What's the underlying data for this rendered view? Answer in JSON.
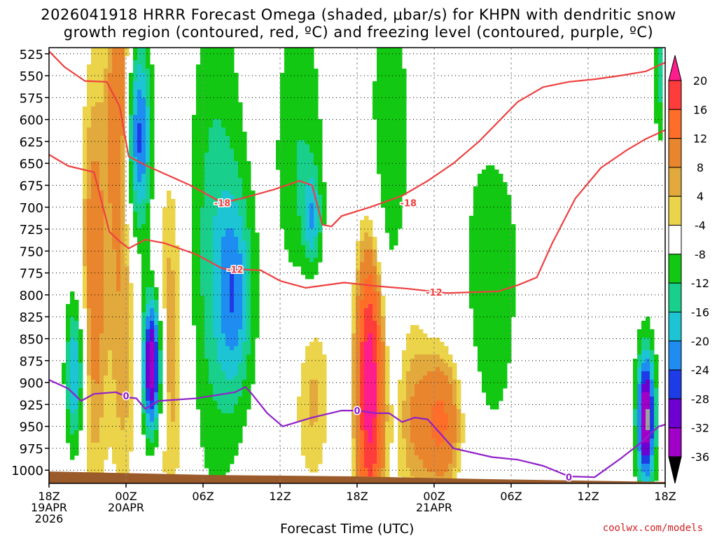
{
  "chart_data": {
    "type": "heatmap",
    "title_line1": "2026041918 HRRR Forecast Omega (shaded, μbar/s) for KHPN with dendritic snow",
    "title_line2": "growth region (contoured, red, ºC) and freezing level (contoured, purple, ºC)",
    "xlabel": "Forecast Time (UTC)",
    "credit": "coolwx.com/models",
    "x_hours": [
      0,
      6,
      12,
      18,
      24,
      30,
      36,
      42,
      48
    ],
    "x_tick_labels": [
      "18Z",
      "00Z",
      "06Z",
      "12Z",
      "18Z",
      "00Z",
      "06Z",
      "12Z",
      "18Z"
    ],
    "x_date_labels": [
      {
        "hour": 0,
        "lines": [
          "19APR",
          "2026"
        ]
      },
      {
        "hour": 6,
        "lines": [
          "20APR"
        ]
      },
      {
        "hour": 30,
        "lines": [
          "21APR"
        ]
      }
    ],
    "y_levels": [
      525,
      550,
      575,
      600,
      625,
      650,
      675,
      700,
      725,
      750,
      775,
      800,
      825,
      850,
      875,
      900,
      925,
      950,
      975,
      1000
    ],
    "y_unit": "hPa",
    "colorbar": {
      "labels": [
        20,
        16,
        12,
        8,
        4,
        -4,
        -8,
        -12,
        -16,
        -20,
        -24,
        -28,
        -32,
        -36
      ],
      "colors": [
        "#ff1c8c",
        "#ff3c3c",
        "#ff6e28",
        "#e9862d",
        "#e2aa3c",
        "#ebd34a",
        "#ffffff",
        "#12c812",
        "#18d08c",
        "#1cc4d4",
        "#1e8cf0",
        "#1e3ce6",
        "#6e00d2",
        "#a000c8",
        "#a0a0a0"
      ]
    },
    "omega_features": [
      {
        "hour": 2.0,
        "level": 890,
        "value": -18,
        "spread_h": 0.5,
        "spread_p": 60
      },
      {
        "hour": 3.5,
        "level": 780,
        "value": 10,
        "spread_h": 0.8,
        "spread_p": 190
      },
      {
        "hour": 5.5,
        "level": 575,
        "value": 12,
        "spread_h": 0.7,
        "spread_p": 120
      },
      {
        "hour": 5.8,
        "level": 870,
        "value": 7,
        "spread_h": 0.8,
        "spread_p": 140
      },
      {
        "hour": 7.0,
        "level": 620,
        "value": -22,
        "spread_h": 0.7,
        "spread_p": 80
      },
      {
        "hour": 8.0,
        "level": 880,
        "value": -34,
        "spread_h": 0.5,
        "spread_p": 55
      },
      {
        "hour": 9.5,
        "level": 850,
        "value": 8,
        "spread_h": 0.9,
        "spread_p": 170
      },
      {
        "hour": 13.0,
        "level": 740,
        "value": -10,
        "spread_h": 1.6,
        "spread_p": 200
      },
      {
        "hour": 14.5,
        "level": 800,
        "value": -14,
        "spread_h": 1.0,
        "spread_p": 80
      },
      {
        "hour": 19.5,
        "level": 640,
        "value": -8,
        "spread_h": 1.4,
        "spread_p": 130
      },
      {
        "hour": 20.5,
        "level": 715,
        "value": -12,
        "spread_h": 0.5,
        "spread_p": 40
      },
      {
        "hour": 20.5,
        "level": 910,
        "value": 7,
        "spread_h": 1.2,
        "spread_p": 90
      },
      {
        "hour": 25.0,
        "level": 900,
        "value": 24,
        "spread_h": 0.8,
        "spread_p": 120
      },
      {
        "hour": 26.5,
        "level": 640,
        "value": -8,
        "spread_h": 1.2,
        "spread_p": 150
      },
      {
        "hour": 28.0,
        "level": 920,
        "value": 6,
        "spread_h": 1.0,
        "spread_p": 120
      },
      {
        "hour": 30.5,
        "level": 945,
        "value": 13,
        "spread_h": 1.3,
        "spread_p": 60
      },
      {
        "hour": 34.5,
        "level": 770,
        "value": -8,
        "spread_h": 1.5,
        "spread_p": 140
      },
      {
        "hour": 35.0,
        "level": 575,
        "value": 6,
        "spread_h": 1.8,
        "spread_p": 50
      },
      {
        "hour": 46.5,
        "level": 940,
        "value": -34,
        "spread_h": 0.5,
        "spread_p": 55
      },
      {
        "hour": 47.5,
        "level": 540,
        "value": -12,
        "spread_h": 0.2,
        "spread_p": 60
      }
    ],
    "contours": [
      {
        "name": "-18",
        "color": "#ee4040",
        "points": [
          [
            0,
            522
          ],
          [
            1.2,
            540
          ],
          [
            2.8,
            556
          ],
          [
            4.5,
            557
          ],
          [
            5.5,
            585
          ],
          [
            6.2,
            642
          ],
          [
            7.5,
            652
          ],
          [
            11,
            675
          ],
          [
            13.5,
            695
          ],
          [
            15,
            690
          ],
          [
            17.5,
            680
          ],
          [
            19.5,
            670
          ],
          [
            20.5,
            675
          ],
          [
            21.3,
            720
          ],
          [
            22,
            722
          ],
          [
            22.8,
            710
          ],
          [
            25,
            700
          ],
          [
            27.5,
            687
          ],
          [
            29.5,
            670
          ],
          [
            31.5,
            650
          ],
          [
            33.5,
            625
          ],
          [
            35.5,
            595
          ],
          [
            36.5,
            580
          ],
          [
            38.5,
            563
          ],
          [
            40.5,
            557
          ],
          [
            42.5,
            554
          ],
          [
            44.5,
            550
          ],
          [
            46.5,
            545
          ],
          [
            48,
            535
          ]
        ],
        "labels": [
          {
            "hour": 13.5,
            "level": 695
          },
          {
            "hour": 28.0,
            "level": 695
          }
        ]
      },
      {
        "name": "-12",
        "color": "#ee4040",
        "points": [
          [
            0,
            640
          ],
          [
            1.5,
            653
          ],
          [
            3.5,
            660
          ],
          [
            4.7,
            728
          ],
          [
            5.5,
            739
          ],
          [
            6.2,
            747
          ],
          [
            7.5,
            737
          ],
          [
            9,
            741
          ],
          [
            11.5,
            754
          ],
          [
            13.5,
            770
          ],
          [
            16.5,
            772
          ],
          [
            18,
            784
          ],
          [
            20,
            792
          ],
          [
            23,
            786
          ],
          [
            25.5,
            790
          ],
          [
            28,
            793
          ],
          [
            31,
            798
          ],
          [
            35,
            796
          ],
          [
            36.5,
            789
          ],
          [
            38,
            780
          ],
          [
            39.2,
            741
          ],
          [
            41,
            690
          ],
          [
            43,
            655
          ],
          [
            45,
            635
          ],
          [
            46.5,
            622
          ],
          [
            48,
            612
          ]
        ],
        "labels": [
          {
            "hour": 14.5,
            "level": 771
          },
          {
            "hour": 30.0,
            "level": 797
          }
        ]
      },
      {
        "name": "0",
        "color": "#9020c8",
        "points": [
          [
            0,
            897
          ],
          [
            1.5,
            907
          ],
          [
            2.5,
            921
          ],
          [
            3.5,
            913
          ],
          [
            5.2,
            911
          ],
          [
            6.2,
            917
          ],
          [
            6.8,
            918
          ],
          [
            7.5,
            930
          ],
          [
            8.5,
            921
          ],
          [
            11.5,
            918
          ],
          [
            14.5,
            911
          ],
          [
            15.3,
            905
          ],
          [
            15.8,
            913
          ],
          [
            17,
            935
          ],
          [
            18.2,
            950
          ],
          [
            20.5,
            940
          ],
          [
            22.8,
            932
          ],
          [
            24,
            932
          ],
          [
            25.5,
            935
          ],
          [
            26.5,
            935
          ],
          [
            27.5,
            945
          ],
          [
            28.5,
            940
          ],
          [
            29.5,
            942
          ],
          [
            31.5,
            975
          ],
          [
            34.5,
            985
          ],
          [
            36.5,
            988
          ],
          [
            38.5,
            995
          ],
          [
            40.5,
            1007
          ],
          [
            42.5,
            1008
          ],
          [
            44.5,
            987
          ],
          [
            46,
            970
          ],
          [
            47.5,
            950
          ],
          [
            48,
            948
          ]
        ],
        "labels": [
          {
            "hour": 6.0,
            "level": 915
          },
          {
            "hour": 24.0,
            "level": 932
          },
          {
            "hour": 40.5,
            "level": 1008
          }
        ]
      }
    ]
  }
}
